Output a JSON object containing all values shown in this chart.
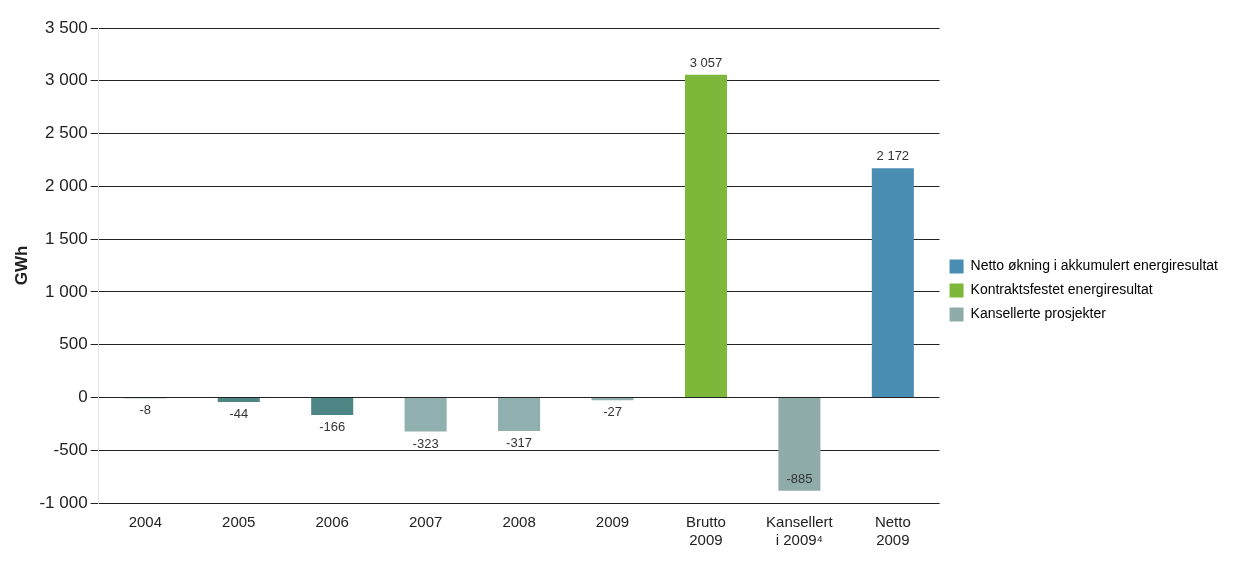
{
  "chart_data": {
    "type": "bar",
    "ylabel": "GWh",
    "categories": [
      "2004",
      "2005",
      "2006",
      "2007",
      "2008",
      "2009",
      "Brutto\n2009",
      "Kansellert\ni 2009⁴",
      "Netto\n2009"
    ],
    "series": [
      {
        "name": "Netto økning i akkumulert energiresultat",
        "color": "#4a8db3",
        "values": [
          null,
          null,
          null,
          null,
          null,
          null,
          null,
          null,
          2172
        ]
      },
      {
        "name": "Kontraktsfestet energiresultat",
        "color": "#7db83a",
        "values": [
          null,
          null,
          null,
          null,
          null,
          null,
          3057,
          null,
          null
        ]
      },
      {
        "name": "Kansellerte prosjekter",
        "color": "#8fabaa",
        "colors": [
          "#4e8585",
          "#4e8585",
          "#4e8585",
          "#8fb0ae",
          "#8fb0ae",
          "#8fb0ae",
          "#8fabaa",
          "#8fabaa",
          "#8fabaa"
        ],
        "values": [
          -8,
          -44,
          -166,
          -323,
          -317,
          -27,
          null,
          -885,
          null
        ]
      }
    ],
    "stacked": true,
    "data_labels": true,
    "legend": "right",
    "grid": "y",
    "ylim": [
      -1000,
      3500
    ],
    "yticks": [
      {
        "value": -1000,
        "label": "-1 000"
      },
      -500,
      0,
      500,
      {
        "value": 1000,
        "label": "1 000"
      },
      {
        "value": 1500,
        "label": "1 500"
      },
      {
        "value": 2000,
        "label": "2 000"
      },
      {
        "value": 2500,
        "label": "2 500"
      },
      {
        "value": 3000,
        "label": "3 000"
      },
      {
        "value": 3500,
        "label": "3 500"
      }
    ]
  }
}
